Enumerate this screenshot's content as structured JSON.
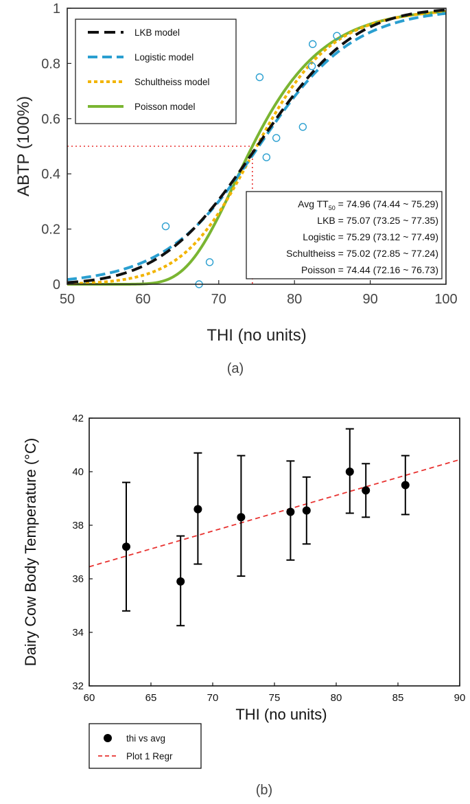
{
  "chart_data": [
    {
      "type": "line",
      "panel_label": "(a)",
      "xlabel": "THI (no units)",
      "ylabel": "ABTP (100%)",
      "xlim": [
        50,
        100
      ],
      "ylim": [
        0,
        1
      ],
      "xticks": [
        "50",
        "60",
        "70",
        "80",
        "90",
        "100"
      ],
      "yticks": [
        "0",
        "0.2",
        "0.4",
        "0.6",
        "0.8",
        "1"
      ],
      "series": [
        {
          "name": "LKB model",
          "model": "lkb",
          "tt50": 75.07,
          "slope": 0.1,
          "color": "#111111",
          "dash": "16,8"
        },
        {
          "name": "Logistic model",
          "model": "logistic",
          "tt50": 75.29,
          "slope": 0.16,
          "color": "#2a9fd0",
          "dash": "14,7"
        },
        {
          "name": "Schultheiss model",
          "model": "schultheiss",
          "tt50": 75.02,
          "slope": 15.2,
          "color": "#f2b400",
          "dash": "5,4"
        },
        {
          "name": "Poisson model",
          "model": "poisson",
          "tt50": 74.44,
          "slope": 3.0,
          "color": "#7ab532",
          "dash": ""
        }
      ],
      "observations": {
        "name": "observed",
        "x": [
          63.0,
          67.4,
          68.8,
          75.4,
          76.3,
          77.6,
          81.1,
          82.3,
          82.4,
          85.6
        ],
        "y": [
          0.21,
          0.0,
          0.08,
          0.75,
          0.46,
          0.53,
          0.57,
          0.79,
          0.87,
          0.9
        ]
      },
      "reference": {
        "x": 74.44,
        "y": 0.5
      },
      "annotations": [
        {
          "prefix": "Avg TT",
          "sub": "50",
          "text": " = 74.96 (74.44 ~ 75.29)"
        },
        {
          "prefix": "LKB = 75.07 (73.25 ~ 77.35)",
          "sub": "",
          "text": ""
        },
        {
          "prefix": "Logistic = 75.29 (73.12 ~ 77.49)",
          "sub": "",
          "text": ""
        },
        {
          "prefix": "Schultheiss = 75.02 (72.85 ~ 77.24)",
          "sub": "",
          "text": ""
        },
        {
          "prefix": "Poisson = 74.44 (72.16 ~ 76.73)",
          "sub": "",
          "text": ""
        }
      ]
    },
    {
      "type": "scatter",
      "panel_label": "(b)",
      "xlabel": "THI (no units)",
      "ylabel": "Dairy Cow Body Temperature (°C)",
      "xlim": [
        60,
        90
      ],
      "ylim": [
        32,
        42
      ],
      "xticks": [
        "60",
        "65",
        "70",
        "75",
        "80",
        "85",
        "90"
      ],
      "yticks": [
        "32",
        "34",
        "36",
        "38",
        "40",
        "42"
      ],
      "series": [
        {
          "name": "thi vs avg",
          "color": "#000000",
          "x": [
            63.0,
            67.4,
            68.8,
            72.3,
            76.3,
            77.6,
            81.1,
            82.4,
            85.6
          ],
          "y": [
            37.2,
            35.9,
            38.6,
            38.3,
            38.5,
            38.55,
            40.0,
            39.3,
            39.5
          ],
          "err_low": [
            34.8,
            34.25,
            36.55,
            36.1,
            36.7,
            37.3,
            38.45,
            38.3,
            38.4
          ],
          "err_high": [
            39.6,
            37.6,
            40.7,
            40.6,
            40.4,
            39.8,
            41.6,
            40.3,
            40.6
          ]
        },
        {
          "name": "Plot 1 Regr",
          "color": "#e8312f",
          "x": [
            60,
            90
          ],
          "y": [
            36.45,
            40.45
          ]
        }
      ]
    }
  ]
}
